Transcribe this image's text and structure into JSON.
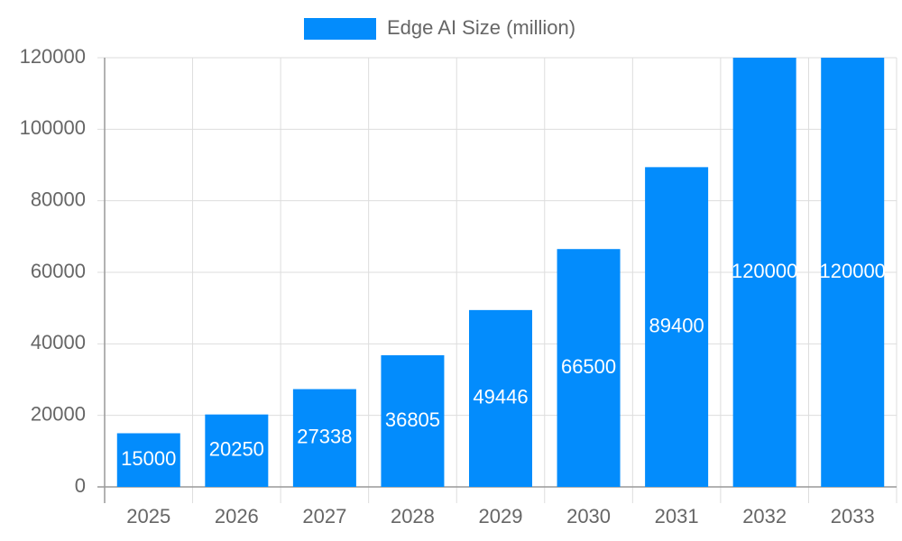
{
  "chart_data": {
    "type": "bar",
    "categories": [
      "2025",
      "2026",
      "2027",
      "2028",
      "2029",
      "2030",
      "2031",
      "2032",
      "2033"
    ],
    "series": [
      {
        "name": "Edge AI Size (million)",
        "color": "#038cfc",
        "values": [
          15000,
          20250,
          27338,
          36805,
          49446,
          66500,
          89400,
          120000,
          120000
        ]
      }
    ],
    "ylim": [
      0,
      120000
    ],
    "yticks": [
      0,
      20000,
      40000,
      60000,
      80000,
      100000,
      120000
    ],
    "grid": true,
    "legend": "top",
    "data_labels": true
  }
}
